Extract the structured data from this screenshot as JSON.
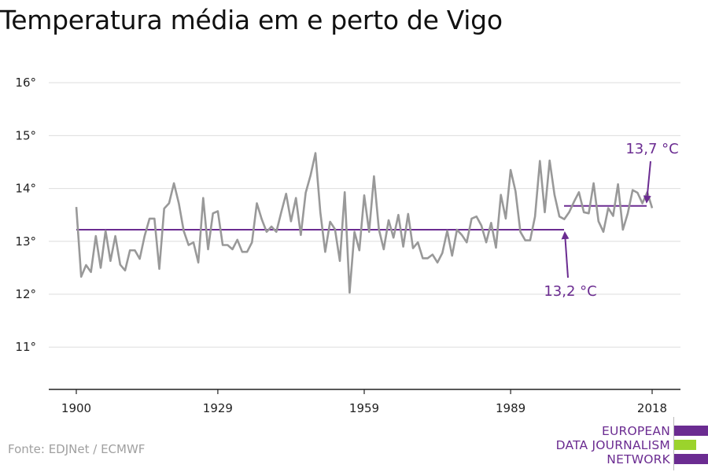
{
  "title": "Temperatura média em e perto de Vigo",
  "source": "Fonte: EDJNet / ECMWF",
  "logo": {
    "lines": [
      "EUROPEAN",
      "DATA JOURNALISM",
      "NETWORK"
    ],
    "colors": {
      "purple": "#6b2c91",
      "green": "#9bd32c"
    }
  },
  "chart_data": {
    "type": "line",
    "title": "Temperatura média em e perto de Vigo",
    "xlabel": "",
    "ylabel": "",
    "xlim": [
      1900,
      2018
    ],
    "ylim": [
      10.2,
      16.3
    ],
    "x_ticks": [
      1900,
      1929,
      1959,
      1989,
      2018
    ],
    "y_ticks": [
      11,
      12,
      13,
      14,
      15,
      16
    ],
    "y_tick_suffix": "°",
    "grid": true,
    "series": [
      {
        "color": "#999999",
        "x": [
          1900,
          1901,
          1902,
          1903,
          1904,
          1905,
          1906,
          1907,
          1908,
          1909,
          1910,
          1911,
          1912,
          1913,
          1914,
          1915,
          1916,
          1917,
          1918,
          1919,
          1920,
          1921,
          1922,
          1923,
          1924,
          1925,
          1926,
          1927,
          1928,
          1929,
          1930,
          1931,
          1932,
          1933,
          1934,
          1935,
          1936,
          1937,
          1938,
          1939,
          1940,
          1941,
          1942,
          1943,
          1944,
          1945,
          1946,
          1947,
          1948,
          1949,
          1950,
          1951,
          1952,
          1953,
          1954,
          1955,
          1956,
          1957,
          1958,
          1959,
          1960,
          1961,
          1962,
          1963,
          1964,
          1965,
          1966,
          1967,
          1968,
          1969,
          1970,
          1971,
          1972,
          1973,
          1974,
          1975,
          1976,
          1977,
          1978,
          1979,
          1980,
          1981,
          1982,
          1983,
          1984,
          1985,
          1986,
          1987,
          1988,
          1989,
          1990,
          1991,
          1992,
          1993,
          1994,
          1995,
          1996,
          1997,
          1998,
          1999,
          2000,
          2001,
          2002,
          2003,
          2004,
          2005,
          2006,
          2007,
          2008,
          2009,
          2010,
          2011,
          2012,
          2013,
          2014,
          2015,
          2016,
          2017,
          2018
        ],
        "values": [
          13.65,
          12.33,
          12.55,
          12.42,
          13.1,
          12.5,
          13.2,
          12.63,
          13.1,
          12.56,
          12.45,
          12.83,
          12.83,
          12.67,
          13.1,
          13.43,
          13.43,
          12.48,
          13.62,
          13.72,
          14.1,
          13.72,
          13.2,
          12.93,
          12.98,
          12.6,
          13.82,
          12.85,
          13.53,
          13.57,
          12.93,
          12.93,
          12.85,
          13.03,
          12.8,
          12.8,
          12.98,
          13.72,
          13.42,
          13.18,
          13.28,
          13.18,
          13.55,
          13.9,
          13.38,
          13.82,
          13.12,
          13.92,
          14.25,
          14.67,
          13.55,
          12.8,
          13.37,
          13.23,
          12.63,
          13.93,
          12.03,
          13.18,
          12.83,
          13.87,
          13.18,
          14.23,
          13.23,
          12.85,
          13.4,
          13.07,
          13.5,
          12.9,
          13.52,
          12.87,
          12.98,
          12.68,
          12.68,
          12.75,
          12.6,
          12.78,
          13.2,
          12.73,
          13.22,
          13.12,
          12.98,
          13.43,
          13.47,
          13.3,
          12.98,
          13.35,
          12.88,
          13.88,
          13.43,
          14.35,
          13.95,
          13.18,
          13.02,
          13.02,
          13.47,
          14.52,
          13.55,
          14.53,
          13.88,
          13.47,
          13.42,
          13.55,
          13.75,
          13.93,
          13.55,
          13.53,
          14.1,
          13.38,
          13.18,
          13.63,
          13.48,
          14.08,
          13.22,
          13.53,
          13.97,
          13.92,
          13.72,
          13.93,
          13.63
        ]
      }
    ],
    "averages": [
      {
        "label": "13,2 °C",
        "value": 13.22,
        "x_start": 1900,
        "x_end": 2000,
        "color": "#6b2c91"
      },
      {
        "label": "13,7 °C",
        "value": 13.67,
        "x_start": 2000,
        "x_end": 2018,
        "color": "#6b2c91"
      }
    ]
  }
}
